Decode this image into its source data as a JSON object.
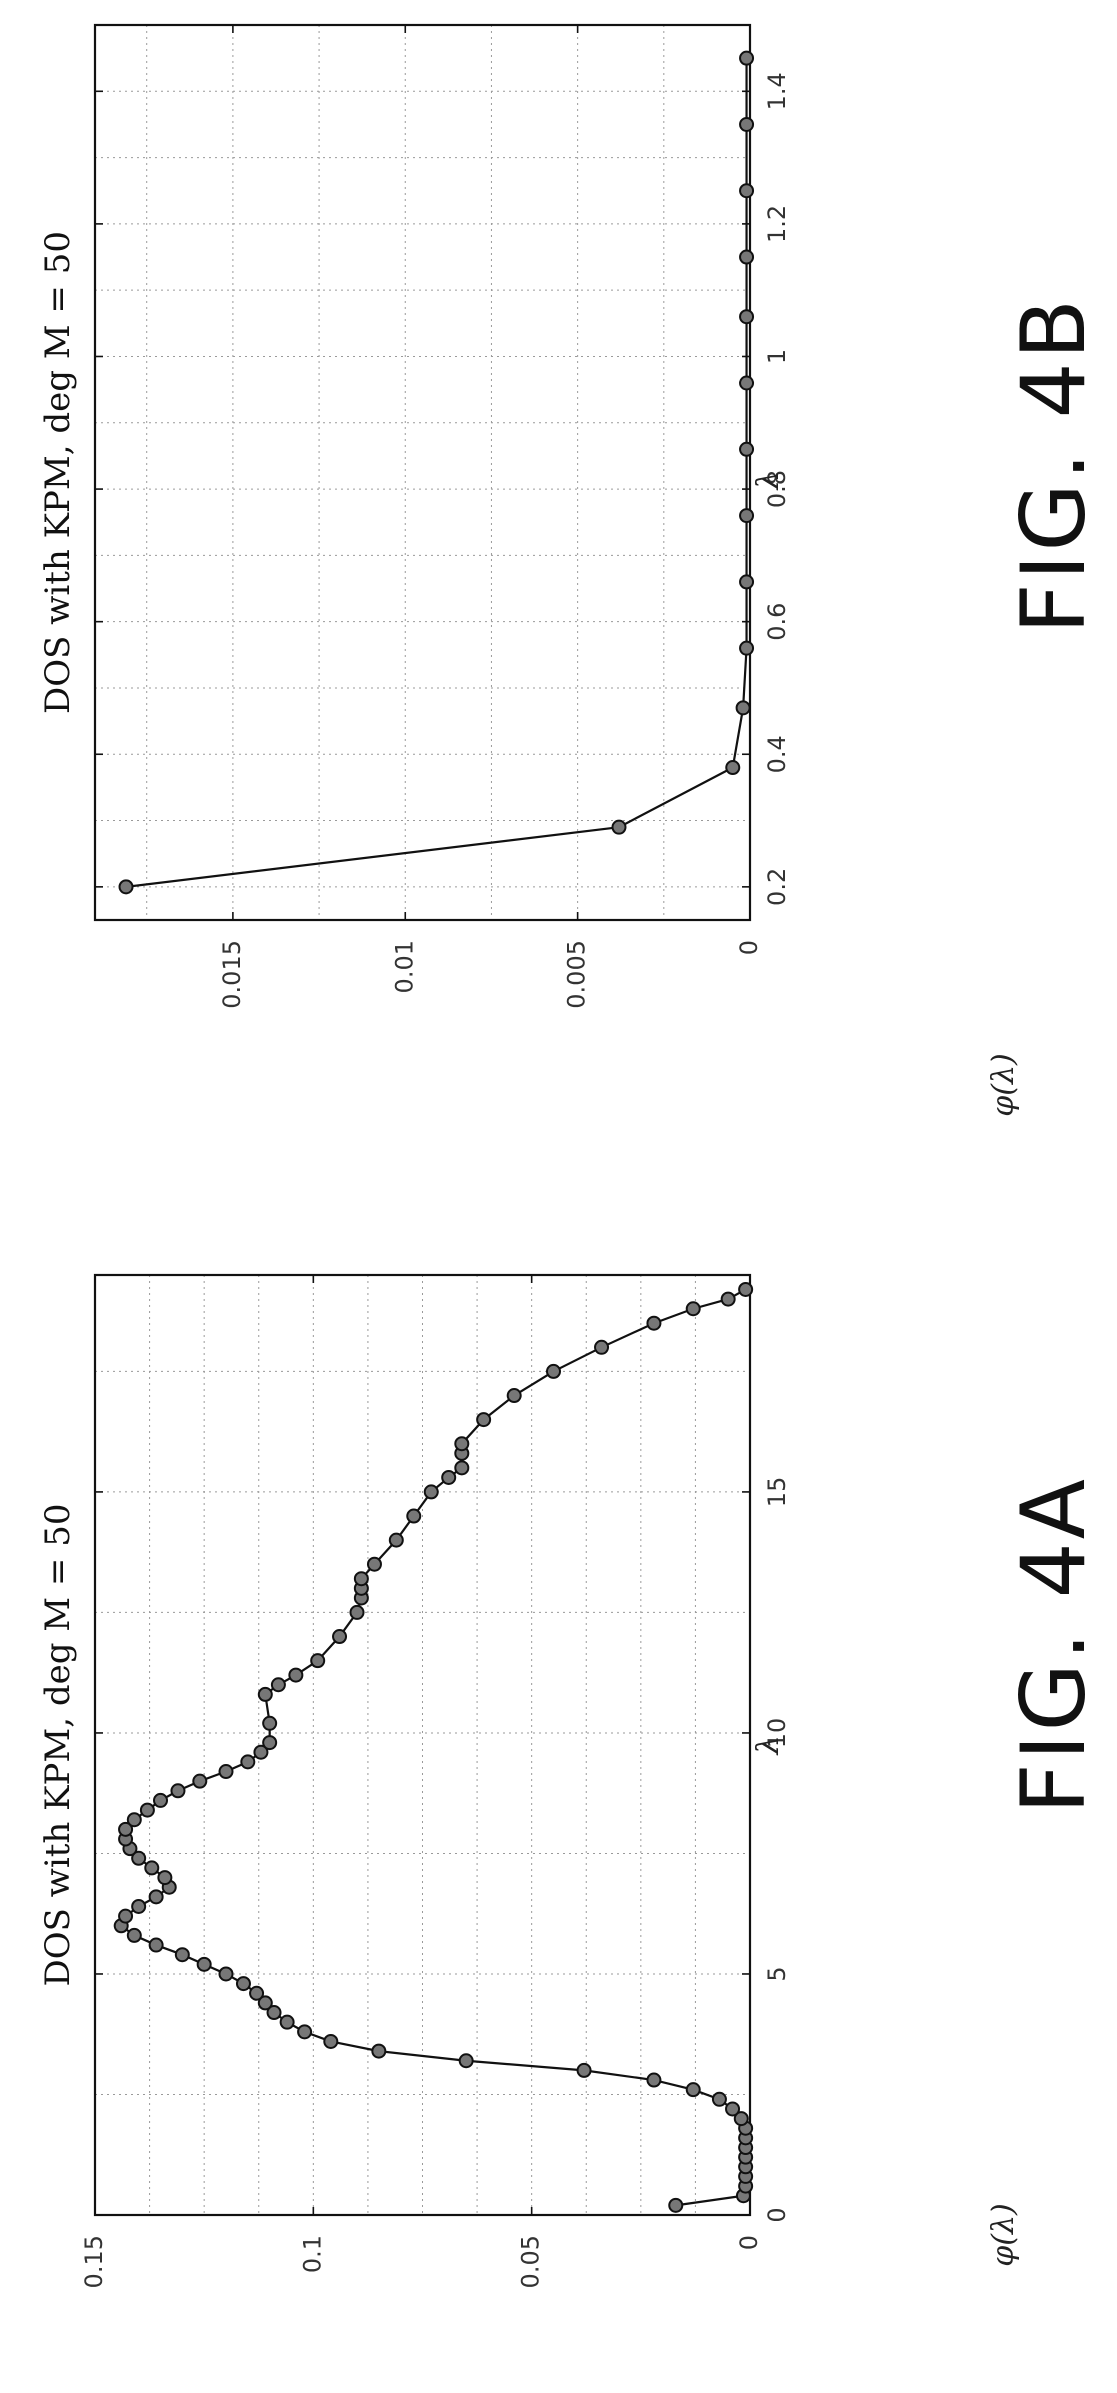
{
  "chart_data": [
    {
      "type": "line",
      "title": "DOS with KPM, deg M = 50",
      "xlabel": "λ",
      "ylabel": "φ(λ)",
      "xlim": [
        0,
        19.5
      ],
      "ylim": [
        0,
        0.15
      ],
      "xticks": [
        0,
        5,
        10,
        15
      ],
      "xtick_labels": [
        "0",
        "5",
        "10",
        "15"
      ],
      "yticks": [
        0,
        0.05,
        0.1,
        0.15
      ],
      "ytick_labels": [
        "0",
        "0.05",
        "0.1",
        "0.15"
      ],
      "grid": true,
      "orientation": "rotated 90° counter-clockwise",
      "caption": "FIG. 4A",
      "series": [
        {
          "marker": "circle",
          "x": [
            0.2,
            0.4,
            0.6,
            0.8,
            1.0,
            1.2,
            1.4,
            1.6,
            1.8,
            2.0,
            2.2,
            2.4,
            2.6,
            2.8,
            3.0,
            3.2,
            3.4,
            3.6,
            3.8,
            4.0,
            4.2,
            4.4,
            4.6,
            4.8,
            5.0,
            5.2,
            5.4,
            5.6,
            5.8,
            6.0,
            6.2,
            6.4,
            6.6,
            6.8,
            7.0,
            7.2,
            7.4,
            7.6,
            7.8,
            8.0,
            8.2,
            8.4,
            8.6,
            8.8,
            9.0,
            9.2,
            9.4,
            9.6,
            9.8,
            10.2,
            10.8,
            11.0,
            11.2,
            11.5,
            12.0,
            12.5,
            12.8,
            13.0,
            13.2,
            13.5,
            14.0,
            14.5,
            15.0,
            15.3,
            15.5,
            15.8,
            16.0,
            16.5,
            17.0,
            17.5,
            18.0,
            18.5,
            18.8,
            19.0,
            19.2
          ],
          "y": [
            0.017,
            0.0015,
            0.001,
            0.001,
            0.001,
            0.001,
            0.001,
            0.001,
            0.001,
            0.002,
            0.004,
            0.007,
            0.013,
            0.022,
            0.038,
            0.065,
            0.085,
            0.096,
            0.102,
            0.106,
            0.109,
            0.111,
            0.113,
            0.116,
            0.12,
            0.125,
            0.13,
            0.136,
            0.141,
            0.144,
            0.143,
            0.14,
            0.136,
            0.133,
            0.134,
            0.137,
            0.14,
            0.142,
            0.143,
            0.143,
            0.141,
            0.138,
            0.135,
            0.131,
            0.126,
            0.12,
            0.115,
            0.112,
            0.11,
            0.11,
            0.111,
            0.108,
            0.104,
            0.099,
            0.094,
            0.09,
            0.089,
            0.089,
            0.089,
            0.086,
            0.081,
            0.077,
            0.073,
            0.069,
            0.066,
            0.066,
            0.066,
            0.061,
            0.054,
            0.045,
            0.034,
            0.022,
            0.013,
            0.005,
            0.001
          ]
        }
      ]
    },
    {
      "type": "line",
      "title": "DOS with KPM, deg M = 50",
      "xlabel": "λ",
      "ylabel": "φ(λ)",
      "xlim": [
        0.15,
        1.5
      ],
      "ylim": [
        0,
        0.019
      ],
      "xticks": [
        0.2,
        0.4,
        0.6,
        0.8,
        1.0,
        1.2,
        1.4
      ],
      "xtick_labels": [
        "0.2",
        "0.4",
        "0.6",
        "0.8",
        "1",
        "1.2",
        "1.4"
      ],
      "yticks": [
        0,
        0.005,
        0.01,
        0.015
      ],
      "ytick_labels": [
        "0",
        "0.005",
        "0.01",
        "0.015"
      ],
      "grid": true,
      "orientation": "rotated 90° counter-clockwise",
      "caption": "FIG. 4B",
      "series": [
        {
          "marker": "circle",
          "x": [
            0.2,
            0.29,
            0.38,
            0.47,
            0.56,
            0.66,
            0.76,
            0.86,
            0.96,
            1.06,
            1.15,
            1.25,
            1.35,
            1.45
          ],
          "y": [
            0.0181,
            0.0038,
            0.0005,
            0.0002,
            0.0001,
            0.0001,
            0.0001,
            0.0001,
            0.0001,
            0.0001,
            0.0001,
            0.0001,
            0.0001,
            0.0001
          ]
        }
      ]
    }
  ]
}
